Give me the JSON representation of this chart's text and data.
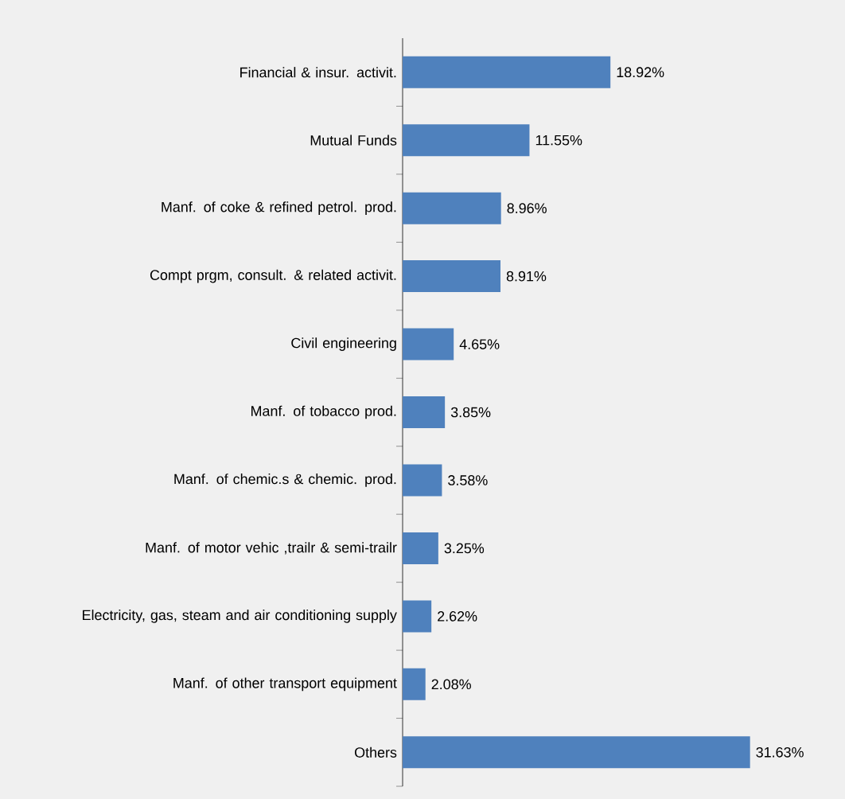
{
  "chart_data": {
    "type": "bar",
    "orientation": "horizontal",
    "data_labels": true,
    "color": "#4f81bd",
    "categories": [
      "Financial & insur. activit.",
      "Mutual Funds",
      "Manf. of coke & refined petrol. prod.",
      "Compt prgm, consult. & related activit.",
      "Civil engineering",
      "Manf. of tobacco prod.",
      "Manf. of chemic.s & chemic. prod.",
      "Manf. of motor vehic ,trailr & semi-trailr",
      "Electricity, gas, steam and air conditioning supply",
      "Manf. of other transport equipment",
      "Others"
    ],
    "values": [
      18.92,
      11.55,
      8.96,
      8.91,
      4.65,
      3.85,
      3.58,
      3.25,
      2.62,
      2.08,
      31.63
    ],
    "value_labels": [
      "18.92%",
      "11.55%",
      "8.96%",
      "8.91%",
      "4.65%",
      "3.85%",
      "3.58%",
      "3.25%",
      "2.62%",
      "2.08%",
      "31.63%"
    ]
  }
}
